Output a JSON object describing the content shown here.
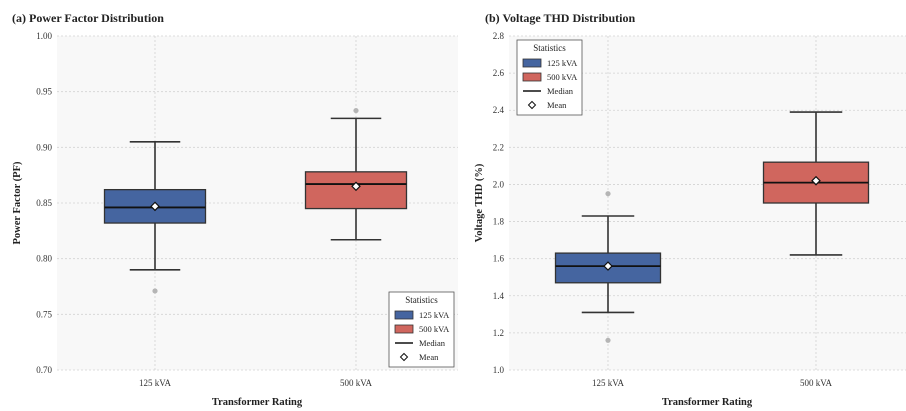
{
  "colors": {
    "series_125": "#4565a0",
    "series_500": "#d0665e",
    "median": "#111111",
    "whisker": "#333333",
    "outlier": "#b5b5b5",
    "plot_bg": "#f8f8f8",
    "grid": "#d2d2d2"
  },
  "chart_data": [
    {
      "type": "box",
      "title": "(a) Power Factor Distribution",
      "xlabel": "Transformer Rating",
      "ylabel": "Power Factor (PF)",
      "ylim": [
        0.7,
        1.0
      ],
      "yticks": [
        "0.70",
        "0.75",
        "0.80",
        "0.85",
        "0.90",
        "0.95",
        "1.00"
      ],
      "categories": [
        "125 kVA",
        "500 kVA"
      ],
      "grid": true,
      "legend_position": "bottom-right",
      "legend": {
        "title": "Statistics",
        "items": [
          "125 kVA",
          "500 kVA",
          "Median",
          "Mean"
        ]
      },
      "boxes": [
        {
          "category": "125 kVA",
          "whisker_low": 0.79,
          "q1": 0.832,
          "median": 0.846,
          "q3": 0.862,
          "whisker_high": 0.905,
          "mean": 0.847,
          "outliers": [
            0.771
          ]
        },
        {
          "category": "500 kVA",
          "whisker_low": 0.817,
          "q1": 0.845,
          "median": 0.867,
          "q3": 0.878,
          "whisker_high": 0.926,
          "mean": 0.865,
          "outliers": [
            0.933
          ]
        }
      ]
    },
    {
      "type": "box",
      "title": "(b) Voltage THD Distribution",
      "xlabel": "Transformer Rating",
      "ylabel": "Voltage THD (%)",
      "ylim": [
        1.0,
        2.8
      ],
      "yticks": [
        "1.0",
        "1.2",
        "1.4",
        "1.6",
        "1.8",
        "2.0",
        "2.2",
        "2.4",
        "2.6",
        "2.8"
      ],
      "categories": [
        "125 kVA",
        "500 kVA"
      ],
      "grid": true,
      "legend_position": "top-left",
      "legend": {
        "title": "Statistics",
        "items": [
          "125 kVA",
          "500 kVA",
          "Median",
          "Mean"
        ]
      },
      "boxes": [
        {
          "category": "125 kVA",
          "whisker_low": 1.31,
          "q1": 1.47,
          "median": 1.56,
          "q3": 1.63,
          "whisker_high": 1.83,
          "mean": 1.56,
          "outliers": [
            1.95,
            1.16
          ]
        },
        {
          "category": "500 kVA",
          "whisker_low": 1.62,
          "q1": 1.9,
          "median": 2.01,
          "q3": 2.12,
          "whisker_high": 2.39,
          "mean": 2.02,
          "outliers": []
        }
      ]
    }
  ]
}
